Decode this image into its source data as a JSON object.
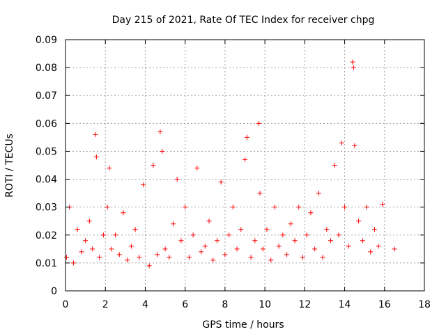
{
  "chart_data": {
    "type": "scatter",
    "title": "Day 215 of 2021, Rate Of TEC Index for receiver chpg",
    "xlabel": "GPS time / hours",
    "ylabel": "ROTI / TECUs",
    "xlim": [
      0,
      18
    ],
    "ylim": [
      0,
      0.09
    ],
    "x_ticks": [
      0,
      2,
      4,
      6,
      8,
      10,
      12,
      14,
      16,
      18
    ],
    "y_ticks": [
      "0",
      "0.01",
      "0.02",
      "0.03",
      "0.04",
      "0.05",
      "0.06",
      "0.07",
      "0.08",
      "0.09"
    ],
    "grid": true,
    "marker": "plus",
    "color": "#ff0000",
    "series": [
      {
        "x": [
          0.05,
          0.2,
          0.4,
          0.6,
          0.8,
          1.0,
          1.2,
          1.35,
          1.5,
          1.55,
          1.7,
          1.9,
          2.1,
          2.2,
          2.3,
          2.5,
          2.7,
          2.9,
          3.1,
          3.3,
          3.5,
          3.7,
          3.9,
          4.2,
          4.4,
          4.6,
          4.75,
          4.85,
          5.0,
          5.2,
          5.4,
          5.6,
          5.8,
          6.0,
          6.2,
          6.4,
          6.6,
          6.8,
          7.0,
          7.2,
          7.4,
          7.6,
          7.8,
          8.0,
          8.2,
          8.4,
          8.6,
          8.8,
          9.0,
          9.1,
          9.3,
          9.5,
          9.7,
          9.75,
          9.9,
          10.1,
          10.3,
          10.5,
          10.7,
          10.9,
          11.1,
          11.3,
          11.5,
          11.7,
          11.9,
          12.1,
          12.3,
          12.5,
          12.7,
          12.9,
          13.1,
          13.3,
          13.5,
          13.7,
          13.85,
          14.0,
          14.2,
          14.4,
          14.45,
          14.5,
          14.7,
          14.9,
          15.1,
          15.3,
          15.5,
          15.7,
          15.9,
          16.5
        ],
        "y": [
          0.012,
          0.03,
          0.01,
          0.022,
          0.014,
          0.018,
          0.025,
          0.015,
          0.056,
          0.048,
          0.012,
          0.02,
          0.03,
          0.044,
          0.015,
          0.02,
          0.013,
          0.028,
          0.011,
          0.016,
          0.022,
          0.012,
          0.038,
          0.009,
          0.045,
          0.013,
          0.057,
          0.05,
          0.015,
          0.012,
          0.024,
          0.04,
          0.018,
          0.03,
          0.012,
          0.02,
          0.044,
          0.014,
          0.016,
          0.025,
          0.011,
          0.018,
          0.039,
          0.013,
          0.02,
          0.03,
          0.015,
          0.022,
          0.047,
          0.055,
          0.012,
          0.018,
          0.06,
          0.035,
          0.015,
          0.022,
          0.011,
          0.03,
          0.016,
          0.02,
          0.013,
          0.024,
          0.018,
          0.03,
          0.012,
          0.02,
          0.028,
          0.015,
          0.035,
          0.012,
          0.022,
          0.018,
          0.045,
          0.02,
          0.053,
          0.03,
          0.016,
          0.082,
          0.08,
          0.052,
          0.025,
          0.018,
          0.03,
          0.014,
          0.022,
          0.016,
          0.031,
          0.015
        ]
      }
    ]
  }
}
